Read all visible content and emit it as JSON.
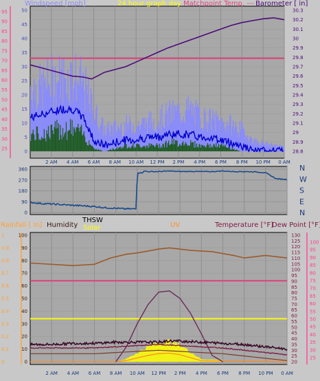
{
  "header_top": {
    "windspeed": "Windspeed [mph]",
    "graph_day": "24 hour graph day",
    "matchpoint": "Matchpoint Temp. ---",
    "barometer": "Barometer [ in]"
  },
  "header_bottom": {
    "rainfall": "Rainfall [ in]",
    "humidity": "Humidity",
    "thsw": "THSW",
    "solar": "Solar",
    "uv": "UV",
    "temperature": "Temperature [°F]",
    "dewpoint": "Dew Point [°F]"
  },
  "x_ticks": [
    "2 AM",
    "4 AM",
    "6 AM",
    "8 AM",
    "10 AM",
    "12 PM",
    "2 PM",
    "4 PM",
    "6 PM",
    "8 PM",
    "10 PM",
    "0 AM"
  ],
  "direction_labels": [
    "N",
    "W",
    "S",
    "E",
    "N"
  ],
  "colors": {
    "windspeed": "#8a8cf8",
    "windavg": "#0000cc",
    "gust": "#1e5a1e",
    "barometer": "#4b0a78",
    "matchpoint": "#e0407a",
    "direction": "#1a4a8a",
    "humidity": "#9a5a2a",
    "solar": "#ffff00",
    "uv": "#ff8c28",
    "temperature": "#7a1840",
    "dewpoint": "#3a0c2a",
    "thsw": "#6a2a5a",
    "rainfall": "#ffa030",
    "bg": "#a8a8a8"
  },
  "chart_data": [
    {
      "type": "line",
      "title": "24 hour graph day",
      "xlabel": "",
      "y_left": {
        "label": "Windspeed [mph]",
        "ticks": [
          25,
          30,
          35,
          40,
          45,
          50,
          55,
          60,
          65,
          70,
          75,
          80,
          85,
          90,
          95
        ]
      },
      "y_left_inner": {
        "ticks": [
          0,
          5,
          10,
          15,
          20,
          25,
          30,
          35,
          40,
          45,
          50
        ]
      },
      "y_right": {
        "label": "Barometer [ in]",
        "ticks": [
          "28.8",
          "28.9",
          "29",
          "29.1",
          "29.2",
          "29.3",
          "29.4",
          "29.5",
          "29.6",
          "29.7",
          "29.8",
          "29.9",
          "30",
          "30.1",
          "30.2",
          "30.3"
        ],
        "ylim": [
          28.8,
          30.3
        ]
      },
      "x_hours": [
        0,
        24
      ],
      "series": [
        {
          "name": "Barometer [ in]",
          "x": [
            0,
            1,
            2,
            3,
            4,
            5,
            5.8,
            6.5,
            7,
            8,
            9,
            10,
            11,
            12,
            13,
            14,
            15,
            16,
            17,
            18,
            19,
            20,
            21,
            22,
            23,
            24
          ],
          "y": [
            29.72,
            29.69,
            29.66,
            29.63,
            29.6,
            29.59,
            29.57,
            29.61,
            29.64,
            29.67,
            29.7,
            29.75,
            29.8,
            29.85,
            29.9,
            29.94,
            29.98,
            30.02,
            30.06,
            30.1,
            30.14,
            30.17,
            30.19,
            30.21,
            30.22,
            30.2
          ]
        },
        {
          "name": "Matchpoint Temp.",
          "x": [
            0,
            24
          ],
          "y": [
            29.79,
            29.79
          ]
        }
      ],
      "wind_series": {
        "x": [
          0,
          1,
          2,
          3,
          4,
          5,
          6,
          7,
          8,
          9,
          10,
          11,
          12,
          13,
          14,
          15,
          16,
          17,
          18,
          19,
          20,
          21,
          22,
          23,
          24
        ],
        "speed": [
          25,
          24,
          27,
          28,
          29,
          25,
          15,
          8,
          9,
          10,
          10,
          11,
          12,
          14,
          15,
          16,
          13,
          12,
          11,
          10,
          8,
          4,
          3,
          2,
          2
        ],
        "avg": [
          12,
          13,
          14,
          15,
          15,
          12,
          4,
          2,
          3,
          4,
          4,
          5,
          5,
          6,
          6,
          6,
          5,
          5,
          4,
          3,
          2,
          0,
          0,
          0,
          0
        ],
        "gust": [
          6,
          6,
          7,
          8,
          8,
          6,
          1,
          0,
          1,
          2,
          2,
          2,
          2,
          3,
          3,
          3,
          2,
          2,
          2,
          1,
          0,
          0,
          0,
          0,
          0
        ]
      }
    },
    {
      "type": "line",
      "title": "",
      "y_left": {
        "ticks": [
          0,
          90,
          180,
          270,
          360
        ]
      },
      "series": [
        {
          "name": "Wind Direction",
          "x": [
            0,
            1,
            2,
            3,
            4,
            5,
            6,
            7,
            8,
            9,
            9.9,
            10,
            10.5,
            10.6,
            11,
            12,
            13,
            14,
            15,
            16,
            17,
            18,
            19,
            20,
            21,
            22,
            23,
            24
          ],
          "y": [
            85,
            75,
            70,
            65,
            60,
            55,
            50,
            40,
            35,
            30,
            30,
            330,
            330,
            345,
            340,
            340,
            345,
            340,
            342,
            340,
            340,
            345,
            340,
            340,
            338,
            330,
            280,
            275
          ]
        }
      ]
    },
    {
      "type": "line",
      "title": "",
      "y_left": {
        "label": "Rainfall [ in]",
        "ticks": [
          0,
          0.1,
          0.2,
          0.3,
          0.4,
          0.5,
          0.6,
          0.7,
          0.8,
          0.9,
          1
        ]
      },
      "y_left_inner": {
        "ticks": [
          0,
          10,
          20,
          30,
          40,
          50,
          60,
          70,
          80,
          90,
          100
        ]
      },
      "y_right": {
        "label": "Temperature [°F]",
        "ticks": [
          20,
          25,
          30,
          35,
          40,
          45,
          50,
          55,
          60,
          65,
          70,
          75,
          80,
          85,
          90,
          95,
          100,
          105,
          110,
          115,
          120,
          125,
          130
        ],
        "ylim": [
          20,
          130
        ]
      },
      "y_right_outer": {
        "label": "Dew Point [°F]",
        "ticks": [
          25,
          30,
          35,
          40,
          45,
          50,
          55,
          60,
          65,
          70,
          75,
          80,
          85,
          90,
          95,
          100
        ]
      },
      "series": [
        {
          "name": "Humidity",
          "x": [
            0,
            4,
            6,
            7.5,
            9,
            10,
            12,
            13,
            15,
            17,
            19,
            20,
            21,
            22,
            23,
            24
          ],
          "y": [
            78,
            76,
            77,
            82,
            85,
            86,
            89,
            90,
            88,
            87,
            84,
            82,
            83,
            84,
            83,
            82
          ]
        },
        {
          "name": "Matchpoint Temp.",
          "x": [
            0,
            24
          ],
          "y": [
            64,
            64
          ]
        },
        {
          "name": "Solar",
          "x": [
            0,
            24
          ],
          "y": [
            34,
            34
          ]
        },
        {
          "name": "THSW",
          "x": [
            0,
            8,
            9,
            10,
            11,
            12,
            13,
            14,
            15,
            16,
            17,
            18
          ],
          "y": [
            0,
            0,
            12,
            30,
            45,
            55,
            56,
            50,
            38,
            22,
            5,
            0
          ]
        },
        {
          "name": "Temperature [°F]",
          "x": [
            0,
            2,
            4,
            6,
            8,
            10,
            12,
            13,
            14,
            16,
            18,
            20,
            22,
            24
          ],
          "y": [
            35,
            35,
            36,
            36,
            37,
            37,
            37,
            38,
            38,
            37,
            36,
            35,
            33,
            31
          ]
        },
        {
          "name": "Dew Point [°F]",
          "x": [
            0,
            4,
            6,
            8,
            10,
            12,
            14,
            16,
            18,
            20,
            22,
            24
          ],
          "y": [
            32,
            32,
            32,
            33,
            34,
            35,
            34,
            33,
            32,
            30,
            28,
            26
          ]
        },
        {
          "name": "UV",
          "x": [
            0,
            8,
            9,
            10,
            11,
            12,
            13,
            14,
            15,
            16,
            24
          ],
          "y": [
            0,
            0,
            0.5,
            1.5,
            2.5,
            3.2,
            3.4,
            2.8,
            1.6,
            0.4,
            0
          ]
        }
      ]
    }
  ]
}
